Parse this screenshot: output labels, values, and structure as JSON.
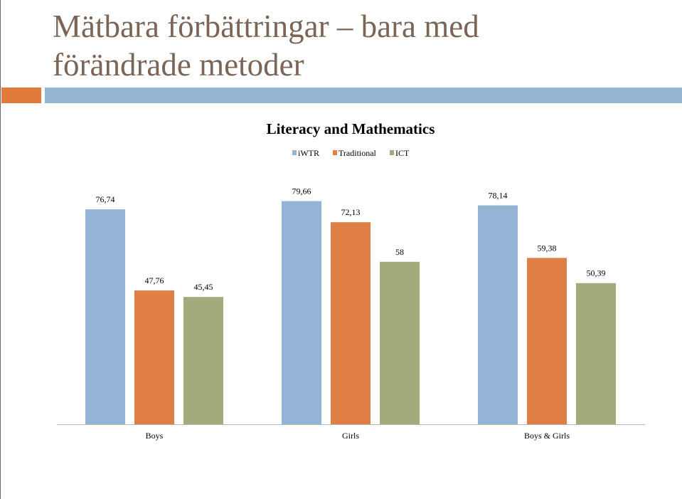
{
  "slide": {
    "title_line1": "Mätbara förbättringar – bara med",
    "title_line2": "förändrade metoder"
  },
  "colors": {
    "title_text": "#7a6557",
    "accent_orange": "#e07b3c",
    "accent_blue": "#94b6d2"
  },
  "chart_data": {
    "type": "bar",
    "title": "Literacy and Mathematics",
    "categories": [
      "Boys",
      "Girls",
      "Boys & Girls"
    ],
    "series": [
      {
        "name": "iWTR",
        "color": "#93b4d4",
        "values": [
          76.74,
          79.66,
          78.14
        ],
        "labels": [
          "76,74",
          "79,66",
          "78,14"
        ]
      },
      {
        "name": "Traditional",
        "color": "#df7e45",
        "values": [
          47.76,
          72.13,
          59.38
        ],
        "labels": [
          "47,76",
          "72,13",
          "59,38"
        ]
      },
      {
        "name": "ICT",
        "color": "#a3ab7d",
        "values": [
          45.45,
          58,
          50.39
        ],
        "labels": [
          "45,45",
          "58",
          "50,39"
        ]
      }
    ],
    "legend_position": "top-center",
    "ylim": [
      0,
      100
    ],
    "grid": false,
    "xlabel": "",
    "ylabel": ""
  }
}
